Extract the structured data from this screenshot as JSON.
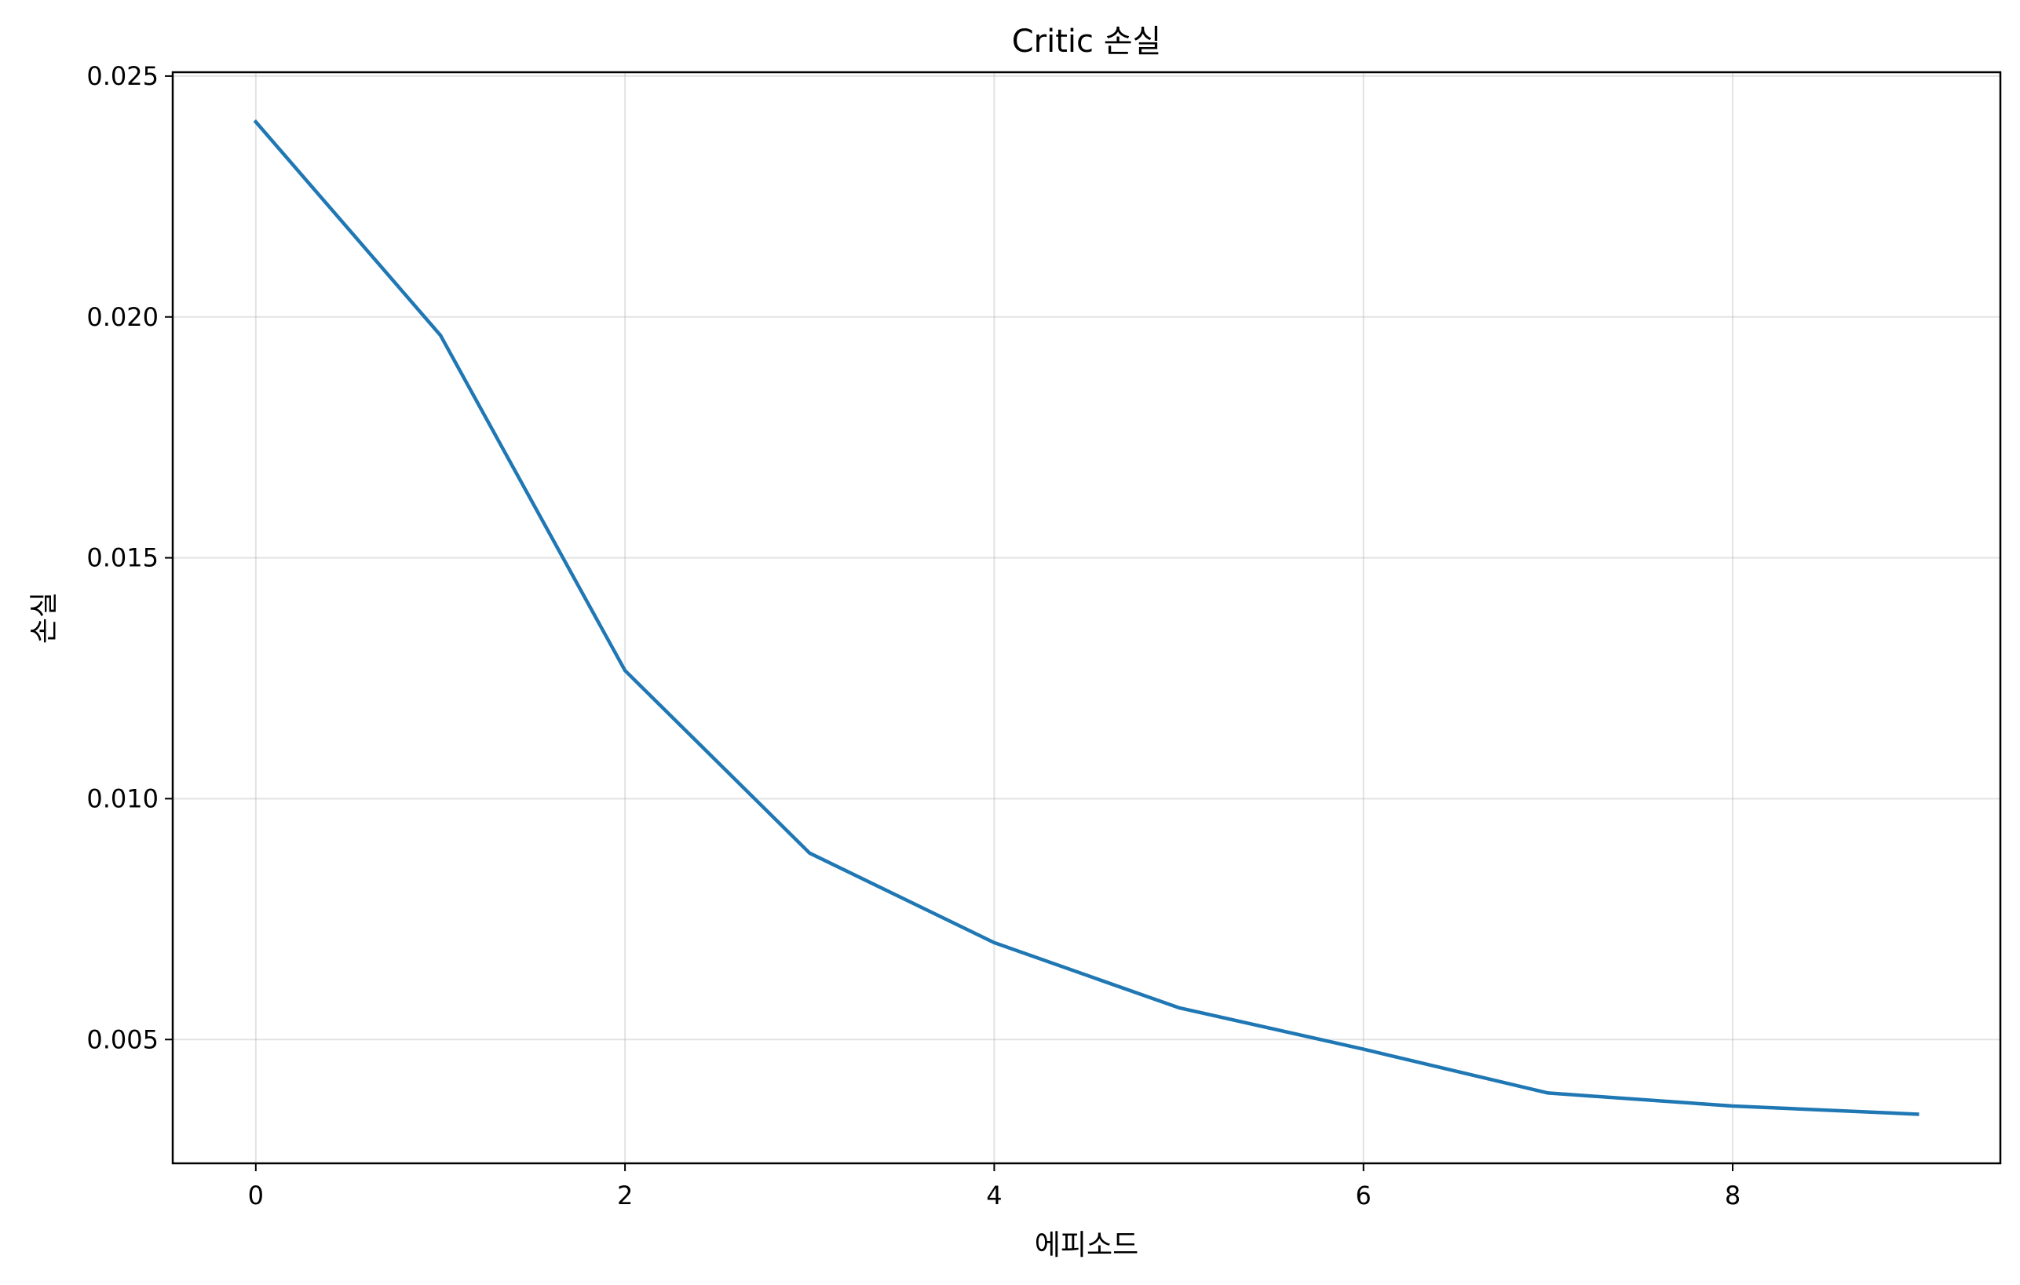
{
  "chart_data": {
    "type": "line",
    "title": "Critic 손실",
    "xlabel": "에피소드",
    "ylabel": "손실",
    "xlim": [
      -0.45,
      9.45
    ],
    "ylim": [
      0.00243,
      0.02508
    ],
    "xticks": [
      0,
      2,
      4,
      6,
      8
    ],
    "xtick_labels": [
      "0",
      "2",
      "4",
      "6",
      "8"
    ],
    "yticks": [
      0.005,
      0.01,
      0.015,
      0.02,
      0.025
    ],
    "ytick_labels": [
      "0.005",
      "0.010",
      "0.015",
      "0.020",
      "0.025"
    ],
    "grid": true,
    "series": [
      {
        "color": "#1f77b4",
        "x": [
          0,
          1,
          2,
          3,
          4,
          5,
          6,
          7,
          8,
          9
        ],
        "values": [
          0.02405,
          0.01962,
          0.01266,
          0.00887,
          0.00701,
          0.00566,
          0.0048,
          0.00389,
          0.00362,
          0.00345
        ]
      }
    ]
  }
}
